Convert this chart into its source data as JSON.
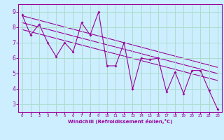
{
  "zigzag_x": [
    0,
    1,
    2,
    3,
    4,
    5,
    6,
    7,
    8,
    9,
    10,
    11,
    12,
    13,
    14,
    15,
    16,
    17,
    18,
    19,
    20,
    21,
    22,
    23
  ],
  "zigzag_y": [
    8.8,
    7.5,
    8.2,
    7.0,
    6.1,
    7.0,
    6.4,
    8.3,
    7.5,
    9.0,
    5.5,
    5.5,
    7.0,
    4.0,
    6.0,
    5.9,
    6.0,
    3.8,
    5.1,
    3.7,
    5.2,
    5.2,
    3.9,
    2.7
  ],
  "trend1_x": [
    0,
    23
  ],
  "trend1_y": [
    8.75,
    5.4
  ],
  "trend2_x": [
    0,
    23
  ],
  "trend2_y": [
    7.85,
    4.55
  ],
  "trend3_x": [
    0,
    23
  ],
  "trend3_y": [
    8.3,
    5.0
  ],
  "line_color": "#990099",
  "bg_color": "#cceeff",
  "grid_color": "#aaddcc",
  "xlabel": "Windchill (Refroidissement éolien,°C)",
  "xlim": [
    -0.5,
    23.5
  ],
  "ylim": [
    2.5,
    9.5
  ],
  "yticks": [
    3,
    4,
    5,
    6,
    7,
    8,
    9
  ],
  "xticks": [
    0,
    1,
    2,
    3,
    4,
    5,
    6,
    7,
    8,
    9,
    10,
    11,
    12,
    13,
    14,
    15,
    16,
    17,
    18,
    19,
    20,
    21,
    22,
    23
  ]
}
